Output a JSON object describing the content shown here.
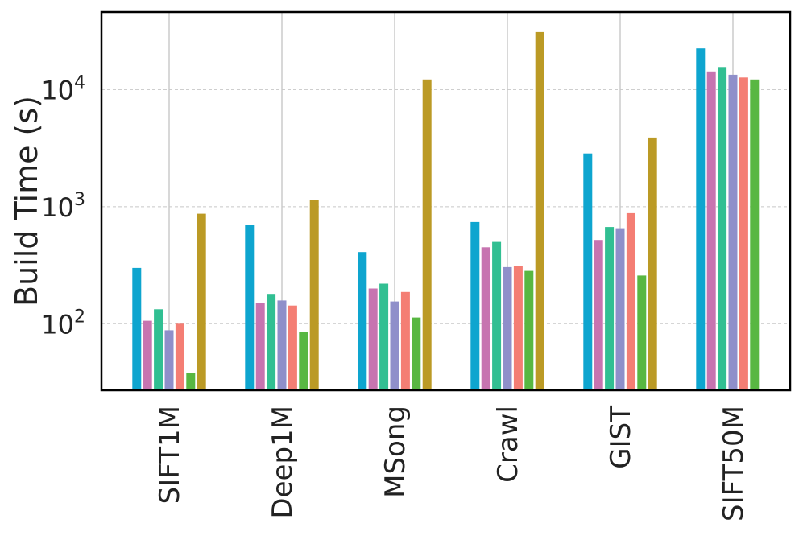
{
  "chart_data": {
    "type": "bar",
    "title": "",
    "xlabel": "",
    "ylabel": "Build Time (s)",
    "yscale": "log",
    "ylim": [
      27,
      46000
    ],
    "yticks": [
      {
        "value": 100,
        "base": "10",
        "exp": "2"
      },
      {
        "value": 1000,
        "base": "10",
        "exp": "3"
      },
      {
        "value": 10000,
        "base": "10",
        "exp": "4"
      }
    ],
    "grid": true,
    "categories": [
      "SIFT1M",
      "Deep1M",
      "MSong",
      "Crawl",
      "GIST",
      "SIFT50M"
    ],
    "series": [
      {
        "name": "series-1",
        "color": "#0ea5cf",
        "values": [
          300,
          700,
          410,
          740,
          2850,
          22500
        ]
      },
      {
        "name": "series-2",
        "color": "#c774b0",
        "values": [
          106,
          150,
          200,
          450,
          520,
          14300
        ]
      },
      {
        "name": "series-3",
        "color": "#31bf92",
        "values": [
          133,
          180,
          220,
          500,
          670,
          15600
        ]
      },
      {
        "name": "series-4",
        "color": "#8f8fca",
        "values": [
          88,
          158,
          155,
          305,
          655,
          13400
        ]
      },
      {
        "name": "series-5",
        "color": "#f47e74",
        "values": [
          100,
          143,
          187,
          310,
          880,
          12700
        ]
      },
      {
        "name": "series-6",
        "color": "#58b742",
        "values": [
          38,
          85,
          113,
          283,
          258,
          12200
        ]
      },
      {
        "name": "series-7",
        "color": "#bb9a25",
        "values": [
          870,
          1150,
          12200,
          31000,
          3900,
          null
        ]
      }
    ]
  }
}
